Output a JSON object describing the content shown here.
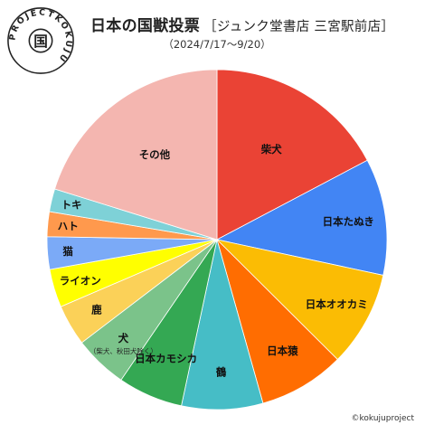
{
  "header": {
    "title": "日本の国獣投票",
    "store": "［ジュンク堂書店 三宮駅前店］",
    "period": "（2024/7/17〜9/20）"
  },
  "logo": {
    "ring_text": "PROJECTKOKUJU",
    "center_char": "国"
  },
  "copyright": "©kokujuproject",
  "chart_data": {
    "type": "pie",
    "start_angle_deg": 0,
    "direction": "clockwise",
    "categories": [
      "柴犬",
      "日本たぬき",
      "日本オオカミ",
      "日本猿",
      "鶴",
      "日本カモシカ",
      "犬",
      "鹿",
      "ライオン",
      "猫",
      "ハト",
      "トキ",
      "その他"
    ],
    "values": [
      19.0,
      12.2,
      10.0,
      9.0,
      8.5,
      6.8,
      5.6,
      4.3,
      4.0,
      3.4,
      2.6,
      2.4,
      22.2
    ],
    "colors": [
      "#ea4335",
      "#4285f4",
      "#fbbc04",
      "#ff6d01",
      "#46bdc6",
      "#34a853",
      "#7bc38a",
      "#fbd158",
      "#ffff00",
      "#7baaf7",
      "#ff994d",
      "#7ed1d7",
      "#f4b6b0"
    ],
    "annotations": [
      {
        "category": "犬",
        "text": "（柴犬、秋田犬除く）"
      }
    ]
  }
}
